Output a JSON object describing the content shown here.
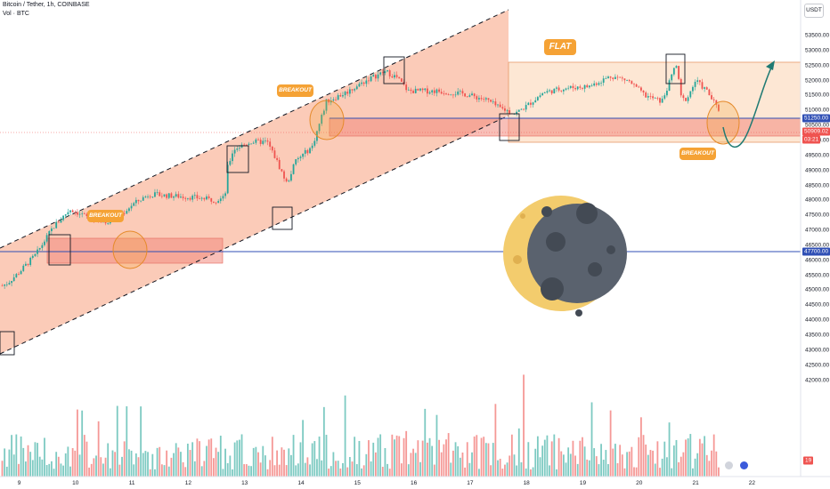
{
  "header": {
    "symbol_line": "Bitcoin / Tether, 1h, COINBASE",
    "volume_line": "Vol · BTC"
  },
  "currency_button": "USDT",
  "colors": {
    "up": "#26a69a",
    "down": "#ef5350",
    "channel": "#f7a07e",
    "zone": "#f28b7d",
    "level_line": "#2f4fb5",
    "label_bg": "#f5a235",
    "flat_fill": "#fde3cc",
    "moon_dark": "#5a626e",
    "moon_light": "#f3cc6d",
    "arrow": "#1f7a73"
  },
  "chart_data": {
    "type": "candlestick",
    "instrument": "Bitcoin / Tether",
    "timeframe": "1h",
    "exchange": "COINBASE",
    "x_labels": [
      "9",
      "10",
      "11",
      "12",
      "13",
      "14",
      "15",
      "16",
      "17",
      "18",
      "19",
      "20",
      "21",
      "22"
    ],
    "y_ticks": [
      "53500.00",
      "53000.00",
      "52500.00",
      "52000.00",
      "51500.00",
      "51000.00",
      "50500.00",
      "50000.00",
      "49500.00",
      "49000.00",
      "48500.00",
      "48000.00",
      "47500.00",
      "47000.00",
      "46500.00",
      "46000.00",
      "45500.00",
      "45000.00",
      "44500.00",
      "44000.00",
      "43500.00",
      "43000.00",
      "42500.00",
      "42000.00"
    ],
    "price_path": [
      [
        8.7,
        45150
      ],
      [
        8.8,
        45250
      ],
      [
        9.0,
        45600
      ],
      [
        9.3,
        46200
      ],
      [
        9.6,
        47100
      ],
      [
        9.9,
        47700
      ],
      [
        10.2,
        47450
      ],
      [
        10.5,
        47250
      ],
      [
        10.8,
        47500
      ],
      [
        11.0,
        47850
      ],
      [
        11.3,
        48200
      ],
      [
        11.7,
        48150
      ],
      [
        12.1,
        48100
      ],
      [
        12.5,
        48000
      ],
      [
        12.65,
        48100
      ],
      [
        12.7,
        49100
      ],
      [
        12.8,
        49700
      ],
      [
        13.1,
        49950
      ],
      [
        13.4,
        49950
      ],
      [
        13.55,
        49400
      ],
      [
        13.75,
        48550
      ],
      [
        13.9,
        49300
      ],
      [
        14.2,
        49800
      ],
      [
        14.35,
        50700
      ],
      [
        14.45,
        51300
      ],
      [
        14.8,
        51600
      ],
      [
        15.2,
        52050
      ],
      [
        15.5,
        52300
      ],
      [
        15.7,
        52100
      ],
      [
        15.9,
        51650
      ],
      [
        16.4,
        51650
      ],
      [
        16.9,
        51550
      ],
      [
        17.3,
        51350
      ],
      [
        17.5,
        51100
      ],
      [
        17.8,
        50900
      ],
      [
        18.0,
        51150
      ],
      [
        18.3,
        51600
      ],
      [
        18.7,
        51750
      ],
      [
        19.1,
        51800
      ],
      [
        19.5,
        52150
      ],
      [
        19.8,
        52000
      ],
      [
        20.1,
        51500
      ],
      [
        20.4,
        51300
      ],
      [
        20.55,
        52000
      ],
      [
        20.65,
        52600
      ],
      [
        20.75,
        51350
      ],
      [
        20.85,
        51400
      ],
      [
        21.0,
        52000
      ],
      [
        21.2,
        51650
      ],
      [
        21.33,
        51250
      ],
      [
        21.45,
        50900
      ]
    ],
    "volume": "per-candle volume bars (red = down, teal = up), typical 42000–43500 scale level, peaks near 45000",
    "price_labels": [
      {
        "value": "51250.00",
        "color": "#2f4fb5"
      },
      {
        "value": "50909.02",
        "color": "#ef5350"
      },
      {
        "value": "03:21",
        "color": "#ef5350"
      },
      {
        "value": "47700.00",
        "color": "#2f4fb5"
      }
    ],
    "horizontal_levels": [
      51250,
      47700
    ],
    "annotations": [
      "BREAKOUT",
      "BREAKOUT",
      "FLAT",
      "BREAKOUT"
    ],
    "volume_pane_label": "19",
    "ylim": [
      42000,
      53700
    ]
  }
}
